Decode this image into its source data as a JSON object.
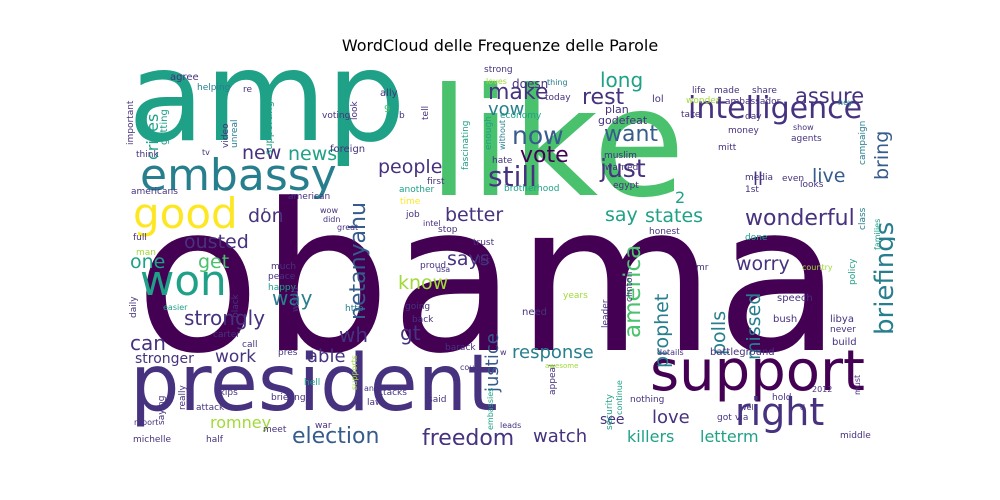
{
  "title": "WordCloud delle Frequenze delle Parole",
  "palette": {
    "dark_purple": "#440154",
    "indigo": "#46327e",
    "blue": "#365c8d",
    "steel": "#277f8e",
    "teal": "#1fa187",
    "green": "#4ac16d",
    "lime": "#a0da39",
    "yellow": "#fde725"
  },
  "words": [
    {
      "text": "obama",
      "color": "dark_purple"
    },
    {
      "text": "like",
      "color": "green"
    },
    {
      "text": "amp",
      "color": "teal"
    },
    {
      "text": "president",
      "color": "indigo"
    },
    {
      "text": "support",
      "color": "dark_purple"
    },
    {
      "text": "embassy",
      "color": "steel"
    },
    {
      "text": "good",
      "color": "yellow"
    },
    {
      "text": "won",
      "color": "teal"
    },
    {
      "text": "intelligence",
      "color": "indigo"
    },
    {
      "text": "right",
      "color": "indigo"
    },
    {
      "text": "election",
      "color": "blue"
    },
    {
      "text": "freedom",
      "color": "indigo"
    },
    {
      "text": "wonderful",
      "color": "indigo"
    },
    {
      "text": "briefings",
      "color": "steel"
    },
    {
      "text": "netanyahu",
      "color": "blue"
    },
    {
      "text": "america",
      "color": "green"
    },
    {
      "text": "still",
      "color": "indigo"
    },
    {
      "text": "now",
      "color": "blue"
    },
    {
      "text": "just",
      "color": "indigo"
    },
    {
      "text": "long",
      "color": "teal"
    },
    {
      "text": "make",
      "color": "indigo"
    },
    {
      "text": "rest",
      "color": "indigo"
    },
    {
      "text": "vote",
      "color": "dark_purple"
    },
    {
      "text": "want",
      "color": "blue"
    },
    {
      "text": "vow",
      "color": "steel"
    },
    {
      "text": "assure",
      "color": "indigo"
    },
    {
      "text": "bring",
      "color": "blue"
    },
    {
      "text": "new",
      "color": "indigo"
    },
    {
      "text": "news",
      "color": "teal"
    },
    {
      "text": "people",
      "color": "indigo"
    },
    {
      "text": "say",
      "color": "teal"
    },
    {
      "text": "states",
      "color": "teal"
    },
    {
      "text": "live",
      "color": "blue"
    },
    {
      "text": "don",
      "color": "indigo"
    },
    {
      "text": "better",
      "color": "indigo"
    },
    {
      "text": "ousted",
      "color": "indigo"
    },
    {
      "text": "one",
      "color": "teal"
    },
    {
      "text": "get",
      "color": "green"
    },
    {
      "text": "way",
      "color": "steel"
    },
    {
      "text": "can",
      "color": "indigo"
    },
    {
      "text": "strongly",
      "color": "indigo"
    },
    {
      "text": "says",
      "color": "indigo"
    },
    {
      "text": "know",
      "color": "lime"
    },
    {
      "text": "justice",
      "color": "blue"
    },
    {
      "text": "worry",
      "color": "indigo"
    },
    {
      "text": "polls",
      "color": "steel"
    },
    {
      "text": "missed",
      "color": "steel"
    },
    {
      "text": "prophet",
      "color": "steel"
    },
    {
      "text": "response",
      "color": "steel"
    },
    {
      "text": "able",
      "color": "indigo"
    },
    {
      "text": "wh",
      "color": "indigo"
    },
    {
      "text": "gt",
      "color": "indigo"
    },
    {
      "text": "work",
      "color": "indigo"
    },
    {
      "text": "stronger",
      "color": "indigo"
    },
    {
      "text": "love",
      "color": "indigo"
    },
    {
      "text": "watch",
      "color": "indigo"
    },
    {
      "text": "killers",
      "color": "teal"
    },
    {
      "text": "letterm",
      "color": "teal"
    },
    {
      "text": "romney",
      "color": "lime"
    },
    {
      "text": "crises",
      "color": "teal"
    },
    {
      "text": "ll",
      "color": "indigo"
    },
    {
      "text": "2",
      "color": "teal"
    },
    {
      "text": "see",
      "color": "indigo"
    },
    {
      "text": "agree",
      "color": "indigo"
    },
    {
      "text": "helping",
      "color": "steel"
    },
    {
      "text": "re",
      "color": "indigo"
    },
    {
      "text": "unreal",
      "color": "steel"
    },
    {
      "text": "video",
      "color": "indigo"
    },
    {
      "text": "supporting",
      "color": "teal"
    },
    {
      "text": "voting",
      "color": "indigo"
    },
    {
      "text": "ally",
      "color": "indigo"
    },
    {
      "text": "9",
      "color": "green"
    },
    {
      "text": "b",
      "color": "indigo"
    },
    {
      "text": "look",
      "color": "indigo"
    },
    {
      "text": "tell",
      "color": "indigo"
    },
    {
      "text": "strong",
      "color": "indigo"
    },
    {
      "text": "loves",
      "color": "lime"
    },
    {
      "text": "doesn",
      "color": "indigo"
    },
    {
      "text": "economy",
      "color": "teal"
    },
    {
      "text": "fascinating",
      "color": "teal"
    },
    {
      "text": "thing",
      "color": "steel"
    },
    {
      "text": "today",
      "color": "indigo"
    },
    {
      "text": "plan",
      "color": "indigo"
    },
    {
      "text": "godefeat",
      "color": "indigo"
    },
    {
      "text": "lol",
      "color": "indigo"
    },
    {
      "text": "life",
      "color": "indigo"
    },
    {
      "text": "made",
      "color": "indigo"
    },
    {
      "text": "share",
      "color": "indigo"
    },
    {
      "text": "wonder",
      "color": "lime"
    },
    {
      "text": "ambassador",
      "color": "indigo"
    },
    {
      "text": "take",
      "color": "indigo"
    },
    {
      "text": "day",
      "color": "indigo"
    },
    {
      "text": "hey",
      "color": "steel"
    },
    {
      "text": "campaign",
      "color": "steel"
    },
    {
      "text": "important",
      "color": "indigo"
    },
    {
      "text": "getting",
      "color": "teal"
    },
    {
      "text": "think",
      "color": "indigo"
    },
    {
      "text": "tv",
      "color": "indigo"
    },
    {
      "text": "americans",
      "color": "indigo"
    },
    {
      "text": "foreign",
      "color": "indigo"
    },
    {
      "text": "muslim",
      "color": "indigo"
    },
    {
      "text": "warned",
      "color": "indigo"
    },
    {
      "text": "enough",
      "color": "teal"
    },
    {
      "text": "without",
      "color": "steel"
    },
    {
      "text": "hate",
      "color": "indigo"
    },
    {
      "text": "first",
      "color": "indigo"
    },
    {
      "text": "brotherhood",
      "color": "teal"
    },
    {
      "text": "another",
      "color": "teal"
    },
    {
      "text": "egypt",
      "color": "indigo"
    },
    {
      "text": "money",
      "color": "indigo"
    },
    {
      "text": "mitt",
      "color": "indigo"
    },
    {
      "text": "show",
      "color": "indigo"
    },
    {
      "text": "agents",
      "color": "indigo"
    },
    {
      "text": "media",
      "color": "indigo"
    },
    {
      "text": "1st",
      "color": "indigo"
    },
    {
      "text": "even",
      "color": "indigo"
    },
    {
      "text": "looks",
      "color": "indigo"
    },
    {
      "text": "class",
      "color": "steel"
    },
    {
      "text": "families",
      "color": "teal"
    },
    {
      "text": "american",
      "color": "indigo"
    },
    {
      "text": "wow",
      "color": "indigo"
    },
    {
      "text": "didn",
      "color": "indigo"
    },
    {
      "text": "great",
      "color": "indigo"
    },
    {
      "text": "time",
      "color": "yellow"
    },
    {
      "text": "job",
      "color": "indigo"
    },
    {
      "text": "intel",
      "color": "indigo"
    },
    {
      "text": "honest",
      "color": "indigo"
    },
    {
      "text": "stop",
      "color": "indigo"
    },
    {
      "text": "trust",
      "color": "indigo"
    },
    {
      "text": "done",
      "color": "teal"
    },
    {
      "text": "policy",
      "color": "teal"
    },
    {
      "text": "country",
      "color": "lime"
    },
    {
      "text": "full",
      "color": "indigo"
    },
    {
      "text": "man",
      "color": "lime"
    },
    {
      "text": "r",
      "color": "indigo"
    },
    {
      "text": "much",
      "color": "indigo"
    },
    {
      "text": "peace",
      "color": "indigo"
    },
    {
      "text": "happy",
      "color": "teal"
    },
    {
      "text": "world",
      "color": "indigo"
    },
    {
      "text": "proud",
      "color": "indigo"
    },
    {
      "text": "usa",
      "color": "indigo"
    },
    {
      "text": "let",
      "color": "indigo"
    },
    {
      "text": "mr",
      "color": "indigo"
    },
    {
      "text": "clinton",
      "color": "indigo"
    },
    {
      "text": "leader",
      "color": "indigo"
    },
    {
      "text": "daily",
      "color": "indigo"
    },
    {
      "text": "easier",
      "color": "teal"
    },
    {
      "text": "black",
      "color": "indigo"
    },
    {
      "text": "carter",
      "color": "indigo"
    },
    {
      "text": "going",
      "color": "indigo"
    },
    {
      "text": "http",
      "color": "steel"
    },
    {
      "text": "years",
      "color": "lime"
    },
    {
      "text": "need",
      "color": "indigo"
    },
    {
      "text": "back",
      "color": "indigo"
    },
    {
      "text": "speech",
      "color": "indigo"
    },
    {
      "text": "bush",
      "color": "indigo"
    },
    {
      "text": "libya",
      "color": "indigo"
    },
    {
      "text": "never",
      "color": "indigo"
    },
    {
      "text": "build",
      "color": "indigo"
    },
    {
      "text": "call",
      "color": "indigo"
    },
    {
      "text": "pres",
      "color": "indigo"
    },
    {
      "text": "barack",
      "color": "indigo"
    },
    {
      "text": "w",
      "color": "indigo"
    },
    {
      "text": "court",
      "color": "indigo"
    },
    {
      "text": "details",
      "color": "indigo"
    },
    {
      "text": "battleground",
      "color": "indigo"
    },
    {
      "text": "must",
      "color": "indigo"
    },
    {
      "text": "2012",
      "color": "indigo"
    },
    {
      "text": "skips",
      "color": "indigo"
    },
    {
      "text": "hell",
      "color": "teal"
    },
    {
      "text": "supports",
      "color": "lime"
    },
    {
      "text": "anti",
      "color": "indigo"
    },
    {
      "text": "embassies",
      "color": "teal"
    },
    {
      "text": "appeal",
      "color": "indigo"
    },
    {
      "text": "security",
      "color": "teal"
    },
    {
      "text": "continue",
      "color": "teal"
    },
    {
      "text": "nothing",
      "color": "indigo"
    },
    {
      "text": "got",
      "color": "indigo"
    },
    {
      "text": "via",
      "color": "indigo"
    },
    {
      "text": "well",
      "color": "indigo"
    },
    {
      "text": "hold",
      "color": "indigo"
    },
    {
      "text": "d",
      "color": "indigo"
    },
    {
      "text": "saying",
      "color": "indigo"
    },
    {
      "text": "really",
      "color": "indigo"
    },
    {
      "text": "attack",
      "color": "indigo"
    },
    {
      "text": "briefing",
      "color": "indigo"
    },
    {
      "text": "law",
      "color": "indigo"
    },
    {
      "text": "said",
      "color": "indigo"
    },
    {
      "text": "awesome",
      "color": "lime"
    },
    {
      "text": "attacks",
      "color": "indigo"
    },
    {
      "text": "report",
      "color": "indigo"
    },
    {
      "text": "michelle",
      "color": "indigo"
    },
    {
      "text": "half",
      "color": "indigo"
    },
    {
      "text": "meet",
      "color": "indigo"
    },
    {
      "text": "war",
      "color": "indigo"
    },
    {
      "text": "leads",
      "color": "indigo"
    },
    {
      "text": "middle",
      "color": "indigo"
    }
  ]
}
